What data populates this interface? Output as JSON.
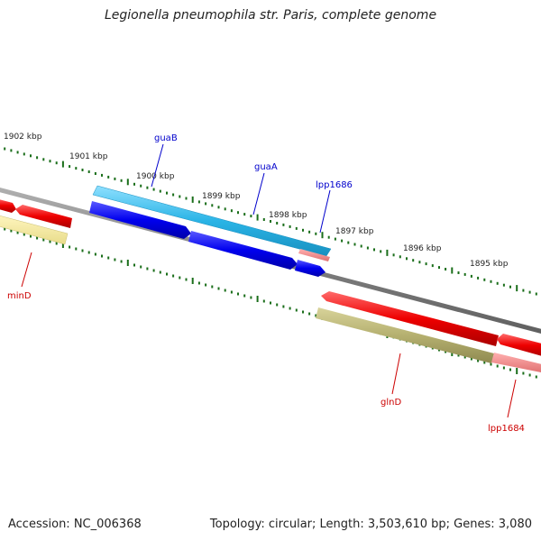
{
  "header": {
    "title": "Legionella pneumophila str. Paris, complete genome"
  },
  "footer": {
    "accession": "Accession: NC_006368",
    "summary": "Topology: circular; Length: 3,503,610 bp; Genes: 3,080"
  },
  "ruler": {
    "labels": [
      "1902 kbp",
      "1901 kbp",
      "1900 kbp",
      "1899 kbp",
      "1898 kbp",
      "1897 kbp",
      "1896 kbp",
      "1895 kbp"
    ]
  },
  "genes": {
    "upper": [
      "guaB",
      "guaA",
      "lpp1686"
    ],
    "lower": [
      "minD",
      "glnD",
      "lpp1684"
    ]
  },
  "colors": {
    "forward_cds": "#2ab4e6",
    "forward_cds_dark": "#0000ee",
    "reverse_cds": "#ee0000",
    "forward_label": "#0000cc",
    "reverse_label": "#cc0000",
    "tick": "#1a6e1a",
    "backbone": "#808080",
    "khaki": "#b5b070",
    "pale_yellow": "#f0e69a",
    "pink": "#f09090"
  }
}
